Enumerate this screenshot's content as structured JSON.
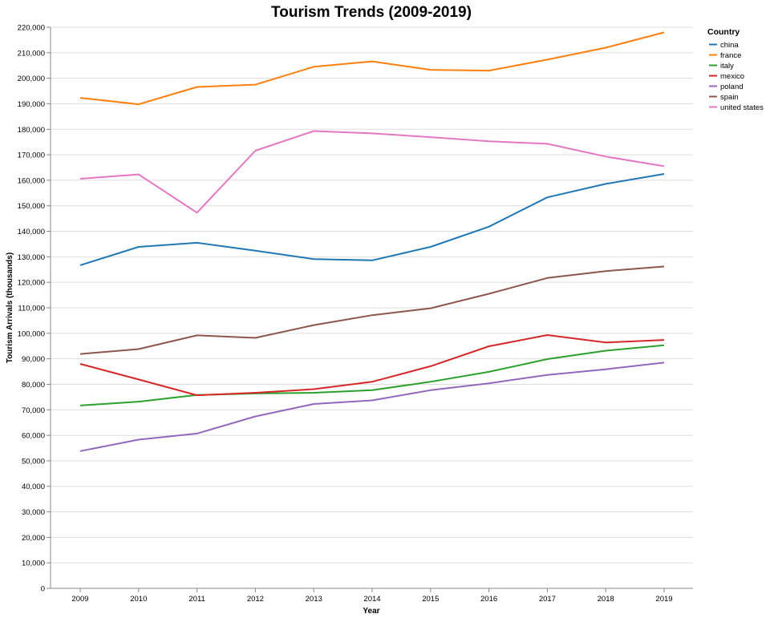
{
  "chart_data": {
    "type": "line",
    "title": "Tourism Trends (2009-2019)",
    "xlabel": "Year",
    "ylabel": "Tourism Arrivals (thousands)",
    "x": [
      2009,
      2010,
      2011,
      2012,
      2013,
      2014,
      2015,
      2016,
      2017,
      2018,
      2019
    ],
    "ylim": [
      0,
      220000
    ],
    "yticks": [
      0,
      10000,
      20000,
      30000,
      40000,
      50000,
      60000,
      70000,
      80000,
      90000,
      100000,
      110000,
      120000,
      130000,
      140000,
      150000,
      160000,
      170000,
      180000,
      190000,
      200000,
      210000,
      220000
    ],
    "grid": true,
    "legend_title": "Country",
    "legend_position": "top-right",
    "series": [
      {
        "name": "china",
        "color": "#1f77b4",
        "values": [
          126700,
          133900,
          135500,
          132400,
          129100,
          128600,
          133900,
          141800,
          153300,
          158600,
          162500
        ]
      },
      {
        "name": "france",
        "color": "#ff7f0e",
        "values": [
          192300,
          189800,
          196600,
          197500,
          204500,
          206600,
          203300,
          203000,
          207300,
          212000,
          218000
        ]
      },
      {
        "name": "italy",
        "color": "#2ca02c",
        "values": [
          71700,
          73200,
          75800,
          76400,
          76700,
          77700,
          81000,
          84900,
          89900,
          93200,
          95300
        ]
      },
      {
        "name": "mexico",
        "color": "#d62728",
        "values": [
          88000,
          81900,
          75700,
          76700,
          78100,
          81000,
          87100,
          94900,
          99300,
          96400,
          97400
        ]
      },
      {
        "name": "poland",
        "color": "#9467bd",
        "values": [
          53800,
          58300,
          60700,
          67400,
          72300,
          73700,
          77700,
          80400,
          83700,
          85900,
          88500
        ]
      },
      {
        "name": "spain",
        "color": "#8c564b",
        "values": [
          91900,
          93800,
          99200,
          98200,
          103200,
          107100,
          109800,
          115500,
          121700,
          124400,
          126200
        ]
      },
      {
        "name": "united states",
        "color": "#e377c2",
        "values": [
          160600,
          162300,
          147300,
          171600,
          179300,
          178400,
          176900,
          175300,
          174300,
          169300,
          165500
        ]
      }
    ]
  }
}
